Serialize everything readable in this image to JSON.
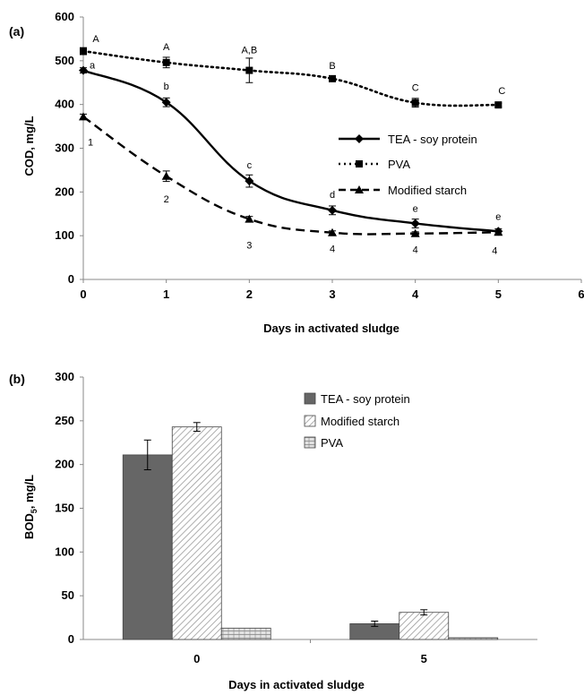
{
  "chart_data": [
    {
      "type": "line",
      "panel_label": "(a)",
      "xlabel": "Days in activated sludge",
      "ylabel": "COD, mg/L",
      "xlim": [
        0,
        6
      ],
      "ylim": [
        0,
        600
      ],
      "xticks": [
        0,
        1,
        2,
        3,
        4,
        5,
        6
      ],
      "yticks": [
        0,
        100,
        200,
        300,
        400,
        500,
        600
      ],
      "legend_position": "right",
      "series": [
        {
          "name": "TEA - soy protein",
          "style": "solid",
          "marker": "diamond",
          "color": "#000000",
          "x": [
            0,
            1,
            2,
            3,
            4,
            5
          ],
          "y": [
            478,
            405,
            225,
            158,
            128,
            110
          ],
          "err": [
            6,
            10,
            14,
            10,
            10,
            6
          ],
          "letters": [
            "a",
            "b",
            "c",
            "d",
            "e",
            "e"
          ]
        },
        {
          "name": "PVA",
          "style": "dotted",
          "marker": "square",
          "color": "#000000",
          "x": [
            0,
            1,
            2,
            3,
            4,
            5
          ],
          "y": [
            522,
            496,
            478,
            459,
            404,
            399
          ],
          "err": [
            8,
            12,
            28,
            6,
            10,
            4
          ],
          "letters": [
            "A",
            "A",
            "A,B",
            "B",
            "C",
            "C"
          ]
        },
        {
          "name": "Modified starch",
          "style": "dashed",
          "marker": "triangle",
          "color": "#000000",
          "x": [
            0,
            1,
            2,
            3,
            4,
            5
          ],
          "y": [
            372,
            236,
            138,
            107,
            105,
            108
          ],
          "err": [
            6,
            12,
            6,
            4,
            4,
            4
          ],
          "letters": [
            "1",
            "2",
            "3",
            "4",
            "4",
            "4"
          ]
        }
      ]
    },
    {
      "type": "bar",
      "panel_label": "(b)",
      "xlabel": "Days in activated sludge",
      "ylabel": "BOD5, mg/L",
      "ylabel_main": "BOD",
      "ylabel_sub": "5",
      "ylabel_unit": ", mg/L",
      "ylim": [
        0,
        300
      ],
      "yticks": [
        0,
        50,
        100,
        150,
        200,
        250,
        300
      ],
      "categories": [
        "0",
        "5"
      ],
      "legend_position": "top-right",
      "series": [
        {
          "name": "TEA - soy protein",
          "fill": "solid-gray",
          "color": "#666666",
          "values": [
            211,
            18
          ],
          "err": [
            17,
            3
          ]
        },
        {
          "name": "Modified starch",
          "fill": "diagonal-hatch",
          "color": "#ffffff",
          "values": [
            243,
            31
          ],
          "err": [
            5,
            3
          ]
        },
        {
          "name": "PVA",
          "fill": "brick-hatch",
          "color": "#dddddd",
          "values": [
            13,
            2
          ],
          "err": [
            0,
            0
          ]
        }
      ]
    }
  ]
}
